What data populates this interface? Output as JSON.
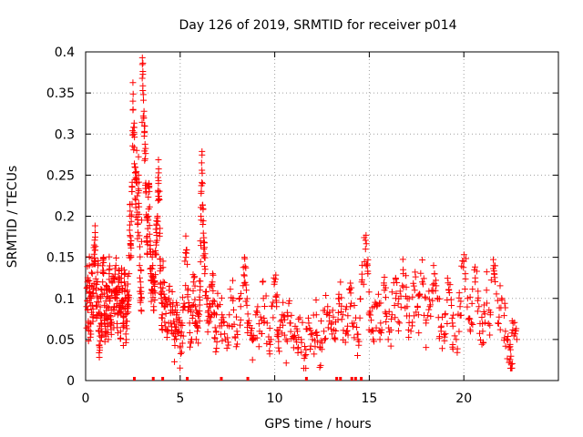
{
  "chart_data": {
    "type": "scatter",
    "title": "Day 126 of 2019, SRMTID for receiver p014",
    "xlabel": "GPS time / hours",
    "ylabel": "SRMTID / TECUs",
    "xlim": [
      0,
      25
    ],
    "ylim": [
      0,
      0.4
    ],
    "x_ticks": [
      0,
      5,
      10,
      15,
      20
    ],
    "x_tick_labels": [
      "0",
      "5",
      "10",
      "15",
      "20"
    ],
    "y_ticks": [
      0,
      0.05,
      0.1,
      0.15,
      0.2,
      0.25,
      0.3,
      0.35,
      0.4
    ],
    "y_tick_labels": [
      "0",
      "0.05",
      "0.1",
      "0.15",
      "0.2",
      "0.25",
      "0.3",
      "0.35",
      "0.4"
    ],
    "grid": true,
    "marker": "+",
    "color": "#ff0000",
    "series": [
      {
        "name": "SRMTID",
        "points": [
          [
            0.05,
            0.09
          ],
          [
            0.1,
            0.12
          ],
          [
            0.15,
            0.07
          ],
          [
            0.2,
            0.14
          ],
          [
            0.25,
            0.06
          ],
          [
            0.3,
            0.1
          ],
          [
            0.35,
            0.13
          ],
          [
            0.4,
            0.08
          ],
          [
            0.45,
            0.165
          ],
          [
            0.5,
            0.18
          ],
          [
            0.55,
            0.11
          ],
          [
            0.6,
            0.09
          ],
          [
            0.65,
            0.14
          ],
          [
            0.7,
            0.06
          ],
          [
            0.75,
            0.04
          ],
          [
            0.8,
            0.1
          ],
          [
            0.85,
            0.07
          ],
          [
            0.9,
            0.12
          ],
          [
            0.95,
            0.15
          ],
          [
            1.0,
            0.08
          ],
          [
            1.05,
            0.06
          ],
          [
            1.1,
            0.11
          ],
          [
            1.15,
            0.09
          ],
          [
            1.2,
            0.05
          ],
          [
            1.25,
            0.13
          ],
          [
            1.3,
            0.1
          ],
          [
            1.35,
            0.07
          ],
          [
            1.4,
            0.12
          ],
          [
            1.5,
            0.09
          ],
          [
            1.55,
            0.11
          ],
          [
            1.6,
            0.14
          ],
          [
            1.65,
            0.1
          ],
          [
            1.7,
            0.08
          ],
          [
            1.75,
            0.12
          ],
          [
            1.8,
            0.11
          ],
          [
            1.85,
            0.06
          ],
          [
            1.9,
            0.13
          ],
          [
            1.95,
            0.09
          ],
          [
            2.0,
            0.07
          ],
          [
            2.05,
            0.12
          ],
          [
            2.1,
            0.1
          ],
          [
            2.15,
            0.05
          ],
          [
            2.2,
            0.11
          ],
          [
            2.25,
            0.09
          ],
          [
            2.3,
            0.13
          ],
          [
            2.35,
            0.2
          ],
          [
            2.4,
            0.15
          ],
          [
            2.45,
            0.23
          ],
          [
            2.5,
            0.34
          ],
          [
            2.55,
            0.3
          ],
          [
            2.6,
            0.26
          ],
          [
            2.65,
            0.22
          ],
          [
            2.7,
            0.28
          ],
          [
            2.75,
            0.19
          ],
          [
            2.8,
            0.25
          ],
          [
            2.85,
            0.14
          ],
          [
            2.9,
            0.12
          ],
          [
            2.95,
            0.1
          ],
          [
            3.0,
            0.393
          ],
          [
            3.05,
            0.348
          ],
          [
            3.1,
            0.31
          ],
          [
            3.15,
            0.27
          ],
          [
            3.2,
            0.23
          ],
          [
            3.25,
            0.17
          ],
          [
            3.3,
            0.2
          ],
          [
            3.35,
            0.24
          ],
          [
            3.4,
            0.16
          ],
          [
            3.45,
            0.13
          ],
          [
            3.5,
            0.11
          ],
          [
            3.55,
            0.14
          ],
          [
            3.6,
            0.09
          ],
          [
            3.65,
            0.12
          ],
          [
            3.7,
            0.155
          ],
          [
            3.75,
            0.18
          ],
          [
            3.8,
            0.2
          ],
          [
            3.85,
            0.24
          ],
          [
            3.9,
            0.22
          ],
          [
            3.95,
            0.14
          ],
          [
            4.0,
            0.1
          ],
          [
            4.05,
            0.08
          ],
          [
            4.1,
            0.12
          ],
          [
            4.2,
            0.09
          ],
          [
            4.3,
            0.06
          ],
          [
            4.4,
            0.1
          ],
          [
            4.5,
            0.07
          ],
          [
            4.6,
            0.09
          ],
          [
            4.7,
            0.05
          ],
          [
            4.8,
            0.08
          ],
          [
            4.9,
            0.06
          ],
          [
            5.0,
            0.04
          ],
          [
            5.1,
            0.07
          ],
          [
            5.2,
            0.09
          ],
          [
            5.3,
            0.15
          ],
          [
            5.4,
            0.11
          ],
          [
            5.5,
            0.07
          ],
          [
            5.6,
            0.05
          ],
          [
            5.7,
            0.12
          ],
          [
            5.8,
            0.09
          ],
          [
            5.9,
            0.06
          ],
          [
            6.0,
            0.08
          ],
          [
            6.05,
            0.11
          ],
          [
            6.1,
            0.2
          ],
          [
            6.15,
            0.256
          ],
          [
            6.2,
            0.19
          ],
          [
            6.25,
            0.16
          ],
          [
            6.3,
            0.13
          ],
          [
            6.4,
            0.1
          ],
          [
            6.5,
            0.07
          ],
          [
            6.6,
            0.09
          ],
          [
            6.7,
            0.12
          ],
          [
            6.8,
            0.08
          ],
          [
            6.9,
            0.06
          ],
          [
            7.0,
            0.09
          ],
          [
            7.2,
            0.07
          ],
          [
            7.4,
            0.05
          ],
          [
            7.6,
            0.08
          ],
          [
            7.8,
            0.1
          ],
          [
            8.0,
            0.06
          ],
          [
            8.2,
            0.09
          ],
          [
            8.4,
            0.15
          ],
          [
            8.5,
            0.11
          ],
          [
            8.6,
            0.07
          ],
          [
            8.8,
            0.05
          ],
          [
            9.0,
            0.08
          ],
          [
            9.2,
            0.06
          ],
          [
            9.4,
            0.1
          ],
          [
            9.6,
            0.07
          ],
          [
            9.8,
            0.05
          ],
          [
            10.0,
            0.12
          ],
          [
            10.1,
            0.09
          ],
          [
            10.2,
            0.06
          ],
          [
            10.4,
            0.08
          ],
          [
            10.6,
            0.05
          ],
          [
            10.8,
            0.07
          ],
          [
            11.0,
            0.04
          ],
          [
            11.2,
            0.06
          ],
          [
            11.4,
            0.05
          ],
          [
            11.6,
            0.03
          ],
          [
            11.8,
            0.07
          ],
          [
            12.0,
            0.05
          ],
          [
            12.2,
            0.08
          ],
          [
            12.4,
            0.04
          ],
          [
            12.6,
            0.06
          ],
          [
            12.8,
            0.09
          ],
          [
            13.0,
            0.07
          ],
          [
            13.2,
            0.05
          ],
          [
            13.4,
            0.1
          ],
          [
            13.6,
            0.08
          ],
          [
            13.8,
            0.06
          ],
          [
            14.0,
            0.09
          ],
          [
            14.2,
            0.07
          ],
          [
            14.4,
            0.05
          ],
          [
            14.6,
            0.12
          ],
          [
            14.8,
            0.16
          ],
          [
            14.9,
            0.14
          ],
          [
            15.0,
            0.08
          ],
          [
            15.2,
            0.06
          ],
          [
            15.4,
            0.09
          ],
          [
            15.6,
            0.07
          ],
          [
            15.8,
            0.11
          ],
          [
            16.0,
            0.05
          ],
          [
            16.2,
            0.08
          ],
          [
            16.4,
            0.1
          ],
          [
            16.6,
            0.07
          ],
          [
            16.8,
            0.13
          ],
          [
            17.0,
            0.09
          ],
          [
            17.2,
            0.06
          ],
          [
            17.4,
            0.11
          ],
          [
            17.6,
            0.08
          ],
          [
            17.8,
            0.12
          ],
          [
            18.0,
            0.07
          ],
          [
            18.2,
            0.09
          ],
          [
            18.4,
            0.14
          ],
          [
            18.6,
            0.1
          ],
          [
            18.8,
            0.06
          ],
          [
            19.0,
            0.08
          ],
          [
            19.2,
            0.11
          ],
          [
            19.4,
            0.07
          ],
          [
            19.6,
            0.05
          ],
          [
            19.8,
            0.09
          ],
          [
            20.0,
            0.145
          ],
          [
            20.2,
            0.1
          ],
          [
            20.4,
            0.07
          ],
          [
            20.6,
            0.12
          ],
          [
            20.8,
            0.09
          ],
          [
            21.0,
            0.06
          ],
          [
            21.2,
            0.11
          ],
          [
            21.4,
            0.08
          ],
          [
            21.6,
            0.13
          ],
          [
            21.8,
            0.07
          ],
          [
            22.0,
            0.1
          ],
          [
            22.2,
            0.06
          ],
          [
            22.4,
            0.04
          ],
          [
            22.5,
            0.02
          ],
          [
            22.6,
            0.07
          ],
          [
            22.8,
            0.05
          ]
        ]
      }
    ],
    "zero_markers_x": [
      2.6,
      3.6,
      4.1,
      5.4,
      7.2,
      8.6,
      11.7,
      13.3,
      13.5,
      14.1,
      14.3,
      14.6
    ]
  }
}
